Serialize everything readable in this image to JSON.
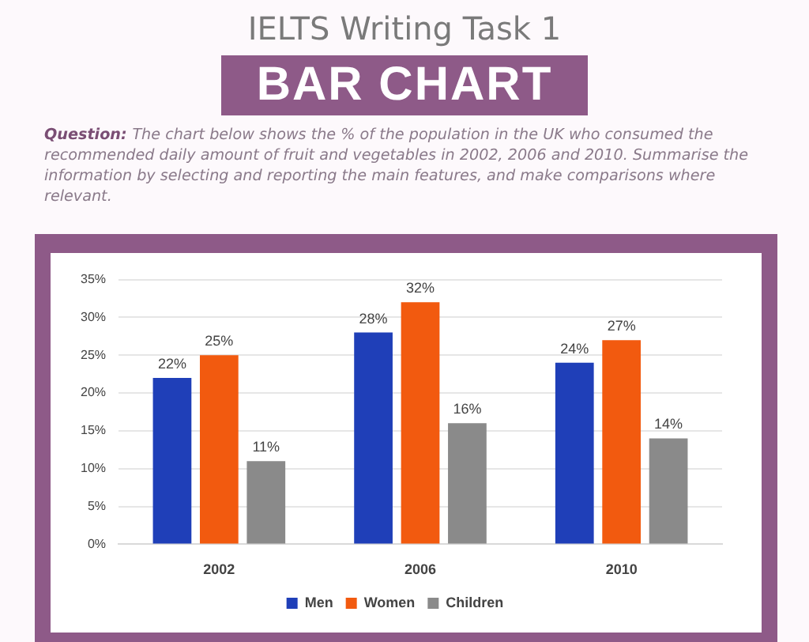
{
  "chart_data": {
    "type": "bar",
    "title": "IELTS Writing Task 1",
    "subtitle": "BAR CHART",
    "annotations": [
      "Question:",
      "The chart below shows the % of the population in the UK who consumed the recommended daily amount of fruit and vegetables in 2002, 2006 and 2010. Summarise the information by selecting and reporting the main features, and make comparisons where relevant."
    ],
    "categories": [
      "2002",
      "2006",
      "2010"
    ],
    "series": [
      {
        "name": "Men",
        "color": "#1f3fb8",
        "values": [
          22,
          28,
          24
        ],
        "value_labels": [
          "22%",
          "28%",
          "24%"
        ]
      },
      {
        "name": "Women",
        "color": "#f25a0f",
        "values": [
          25,
          32,
          27
        ],
        "value_labels": [
          "25%",
          "32%",
          "27%"
        ]
      },
      {
        "name": "Children",
        "color": "#8a8a8a",
        "values": [
          11,
          16,
          14
        ],
        "value_labels": [
          "11%",
          "16%",
          "14%"
        ]
      }
    ],
    "ylim": [
      0,
      35
    ],
    "yticks": [
      {
        "value": 0,
        "label": "0%"
      },
      {
        "value": 5,
        "label": "5%"
      },
      {
        "value": 10,
        "label": "10%"
      },
      {
        "value": 15,
        "label": "15%"
      },
      {
        "value": 20,
        "label": "20%"
      },
      {
        "value": 25,
        "label": "25%"
      },
      {
        "value": 30,
        "label": "30%"
      },
      {
        "value": 35,
        "label": "35%"
      }
    ],
    "grid": "y",
    "legend": "bottom"
  }
}
